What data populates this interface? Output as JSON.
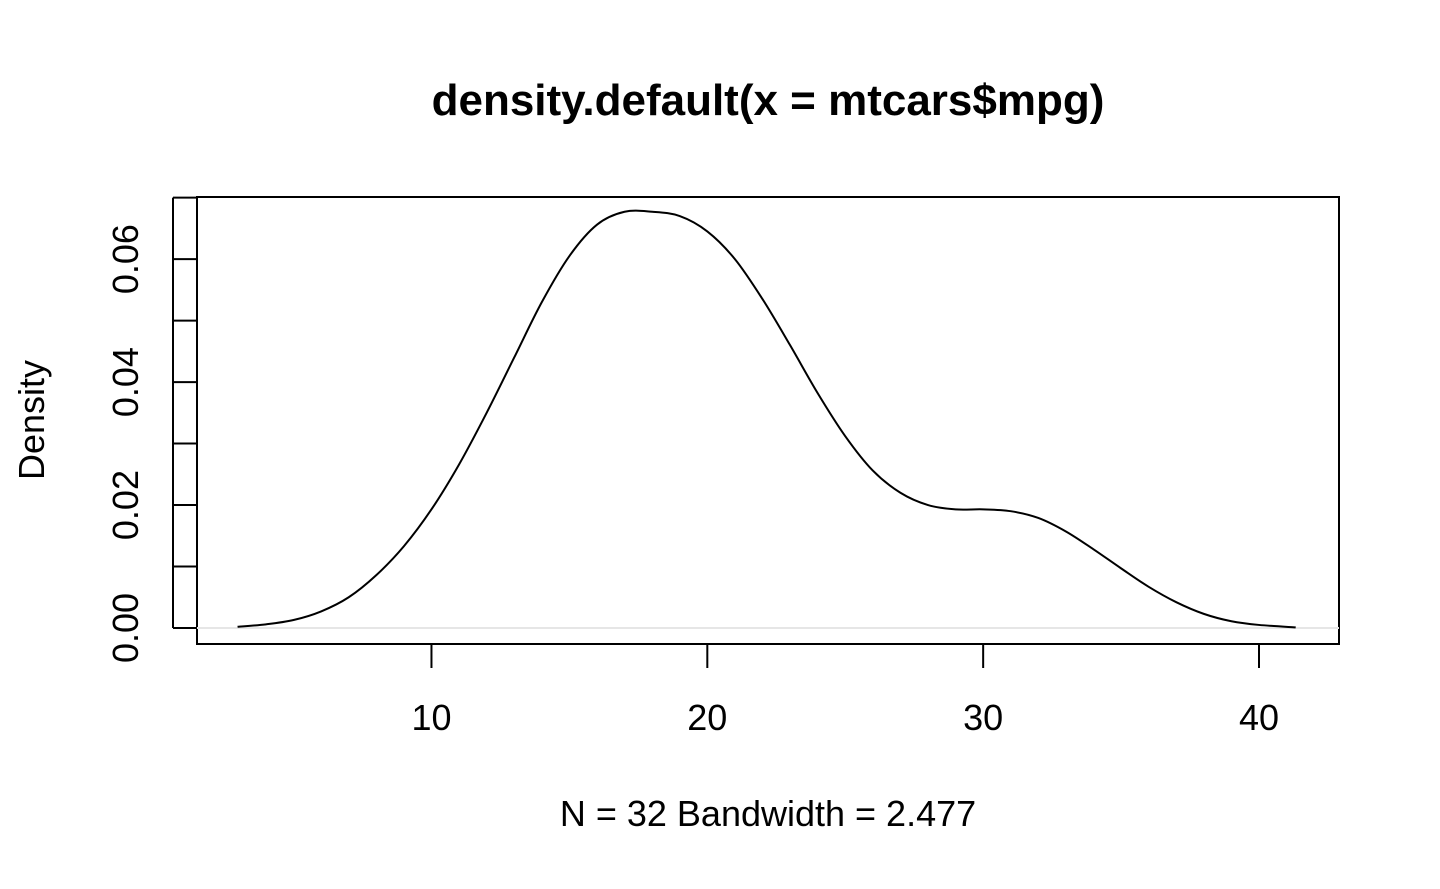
{
  "chart_data": {
    "type": "line",
    "title": "density.default(x = mtcars$mpg)",
    "xlabel": "N = 32   Bandwidth = 2.477",
    "ylabel": "Density",
    "xlim": [
      1.5,
      42.9
    ],
    "ylim": [
      -0.0026,
      0.0701
    ],
    "x_ticks": [
      10,
      20,
      30,
      40
    ],
    "x_tick_labels": [
      "10",
      "20",
      "30",
      "40"
    ],
    "y_ticks": [
      0.0,
      0.01,
      0.02,
      0.03,
      0.04,
      0.05,
      0.06,
      0.07
    ],
    "y_tick_labels": [
      "0.00",
      "0.02",
      "0.04",
      "0.06"
    ],
    "y_labeled_ticks": [
      0.0,
      0.02,
      0.04,
      0.06
    ],
    "zero_line": true,
    "series": [
      {
        "name": "density",
        "color": "#000000",
        "x": [
          2.97,
          4,
          5,
          6,
          7,
          8,
          9,
          10,
          11,
          12,
          13,
          14,
          15,
          16,
          17,
          18,
          19,
          20,
          21,
          22,
          23,
          24,
          25,
          26,
          27,
          28,
          29,
          30,
          31,
          32,
          33,
          34,
          35,
          36,
          37,
          38,
          39,
          40,
          41.33
        ],
        "y": [
          0.0002,
          0.0006,
          0.0013,
          0.0027,
          0.005,
          0.0086,
          0.0133,
          0.0193,
          0.0266,
          0.035,
          0.044,
          0.053,
          0.0605,
          0.0656,
          0.0677,
          0.0677,
          0.067,
          0.0645,
          0.06,
          0.0535,
          0.046,
          0.0382,
          0.0312,
          0.0256,
          0.022,
          0.02,
          0.0193,
          0.0193,
          0.019,
          0.0179,
          0.0157,
          0.0128,
          0.0097,
          0.0067,
          0.0042,
          0.0023,
          0.0011,
          0.0005,
          0.0001
        ]
      }
    ]
  }
}
